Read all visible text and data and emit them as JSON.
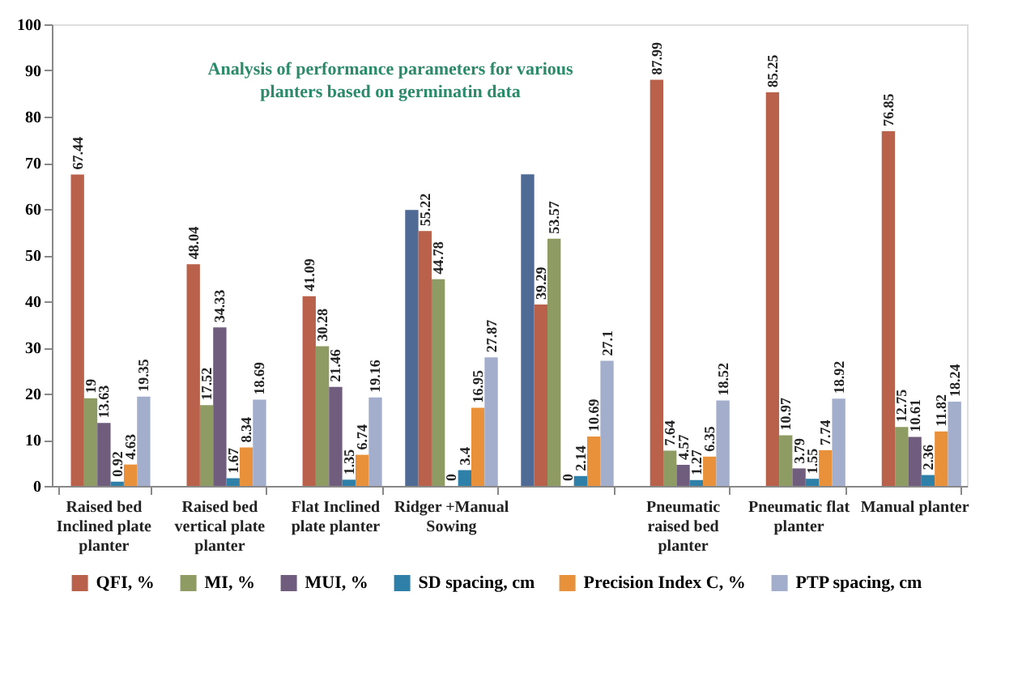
{
  "chart_data": {
    "type": "bar",
    "title": "Analysis of performance parameters for various planters based on germinatin data",
    "categories": [
      "Raised bed Inclined plate planter",
      "Raised bed vertical plate planter",
      "Flat Inclined plate planter",
      "Ridger +Manual Sowing",
      null,
      "Pneumatic raised bed planter",
      "Pneumatic flat planter",
      "Manual planter"
    ],
    "series": [
      {
        "color": "#4f6a94",
        "values": [
          null,
          null,
          null,
          59.8,
          67.5,
          null,
          null,
          null
        ],
        "value_labels": [
          null,
          null,
          null,
          null,
          null,
          null,
          null,
          null
        ]
      },
      {
        "name": "QFI, %",
        "color": "#b9614a",
        "values": [
          67.44,
          48.04,
          41.09,
          55.22,
          39.29,
          87.99,
          85.25,
          76.85
        ],
        "value_labels": [
          "67.44",
          "48.04",
          "41.09",
          "55.22",
          "39.29",
          "87.99",
          "85.25",
          "76.85"
        ]
      },
      {
        "name": "MI, %",
        "color": "#8e9b62",
        "values": [
          19,
          17.52,
          30.28,
          44.78,
          53.57,
          7.64,
          10.97,
          12.75
        ],
        "value_labels": [
          "19",
          "17.52",
          "30.28",
          "44.78",
          "53.57",
          "7.64",
          "10.97",
          "12.75"
        ]
      },
      {
        "name": "MUI, %",
        "color": "#705c7c",
        "values": [
          13.63,
          34.33,
          21.46,
          0,
          0,
          4.57,
          3.79,
          10.61
        ],
        "value_labels": [
          "13.63",
          "34.33",
          "21.46",
          "0",
          "0",
          "4.57",
          "3.79",
          "10.61"
        ]
      },
      {
        "name": "SD spacing, cm",
        "color": "#2f80a8",
        "values": [
          0.92,
          1.67,
          1.35,
          3.4,
          2.14,
          1.27,
          1.55,
          2.36
        ],
        "value_labels": [
          "0.92",
          "1.67",
          "1.35",
          "3.4",
          "2.14",
          "1.27",
          "1.55",
          "2.36"
        ]
      },
      {
        "name": "Precision Index C, %",
        "color": "#e8913a",
        "values": [
          4.63,
          8.34,
          6.74,
          16.95,
          10.69,
          6.35,
          7.74,
          11.82
        ],
        "value_labels": [
          "4.63",
          "8.34",
          "6.74",
          "16.95",
          "10.69",
          "6.35",
          "7.74",
          "11.82"
        ]
      },
      {
        "name": "PTP spacing, cm",
        "color": "#a3aecd",
        "values": [
          19.35,
          18.69,
          19.16,
          27.87,
          27.1,
          18.52,
          18.92,
          18.24
        ],
        "value_labels": [
          "19.35",
          "18.69",
          "19.16",
          "27.87",
          "27.1",
          "18.52",
          "18.92",
          "18.24"
        ]
      }
    ],
    "ylim": [
      0,
      100
    ],
    "yticks": [
      0,
      10,
      20,
      30,
      40,
      50,
      60,
      70,
      80,
      90,
      100
    ],
    "grid": false,
    "legend": "bottom"
  }
}
